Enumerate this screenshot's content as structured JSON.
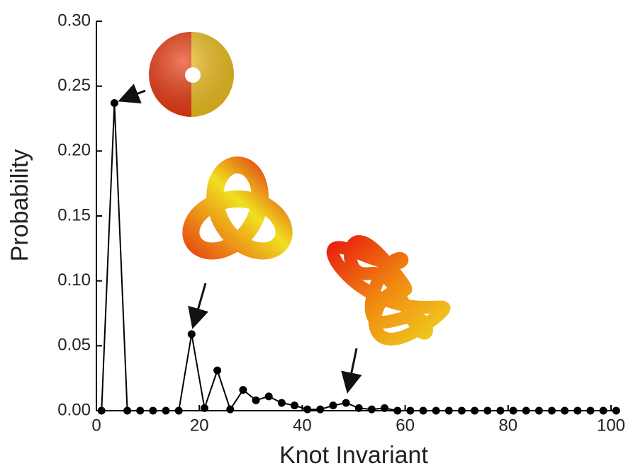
{
  "chart_data": {
    "type": "line",
    "x_label": "Knot Invariant",
    "y_label": "Probability",
    "x": [
      1,
      3.5,
      6,
      8.5,
      11,
      13.5,
      16,
      18.5,
      21,
      23.5,
      26,
      28.5,
      31,
      33.5,
      36,
      38.5,
      41,
      43.5,
      46,
      48.5,
      51,
      53.5,
      56,
      58.5,
      61,
      63.5,
      66,
      68.5,
      71,
      73.5,
      76,
      78.5,
      81,
      83.5,
      86,
      88.5,
      91,
      93.5,
      96,
      98.5,
      101
    ],
    "series": [
      {
        "color": "#000000",
        "values": [
          0,
          0.237,
          0,
          0,
          0,
          0,
          0,
          0.059,
          0.002,
          0.031,
          0.001,
          0.016,
          0.008,
          0.011,
          0.006,
          0.004,
          0.001,
          0.001,
          0.004,
          0.006,
          0.002,
          0.001,
          0.002,
          0,
          0,
          0,
          0,
          0,
          0,
          0,
          0,
          0,
          0,
          0,
          0,
          0,
          0,
          0,
          0,
          0,
          0
        ]
      }
    ],
    "xlim": [
      0,
      100
    ],
    "xticks": [
      0,
      20,
      40,
      60,
      80,
      100
    ],
    "ylim": [
      0,
      0.3
    ],
    "yticks": [
      {
        "value": 0,
        "label": "0.00"
      },
      0.05,
      {
        "value": 0.1,
        "label": "0.10"
      },
      0.15,
      {
        "value": 0.2,
        "label": "0.20"
      },
      0.25,
      {
        "value": 0.3,
        "label": "0.30"
      }
    ]
  }
}
